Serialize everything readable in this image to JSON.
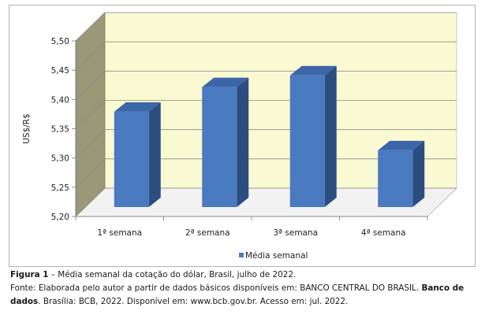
{
  "chart_data": {
    "type": "bar",
    "ylabel": "US$/R$",
    "categories": [
      "1ª semana",
      "2ª semana",
      "3ª semana",
      "4ª semana"
    ],
    "series": [
      {
        "name": "Média semanal",
        "values": [
          5.363,
          5.405,
          5.425,
          5.297
        ]
      }
    ],
    "ylim": [
      5.2,
      5.5
    ],
    "yticks": [
      "5,20",
      "5,25",
      "5,30",
      "5,35",
      "5,40",
      "5,45",
      "5,50"
    ],
    "grid": true,
    "legend_position": "bottom-center",
    "colors": {
      "bar_front": "#4a7ac0",
      "bar_side": "#2b4e80",
      "bar_top": "#3b66a8",
      "plot_back": "#fafad2",
      "plot_wall": "#999977",
      "plot_floor": "#f2f2f2",
      "grid": "#8c8c8c"
    }
  },
  "caption": {
    "figure_label": "Figura 1",
    "figure_title": " – Média semanal da cotação do dólar, Brasil, julho de 2022.",
    "source_prefix": "Fonte: Elaborada pelo autor a partir de dados básicos disponíveis em: BANCO CENTRAL DO BRASIL. ",
    "source_bold": "Banco de dados",
    "source_suffix": ". Brasília: BCB, 2022. Disponível em: www.bcb.gov.br. Acesso em: jul. 2022."
  }
}
